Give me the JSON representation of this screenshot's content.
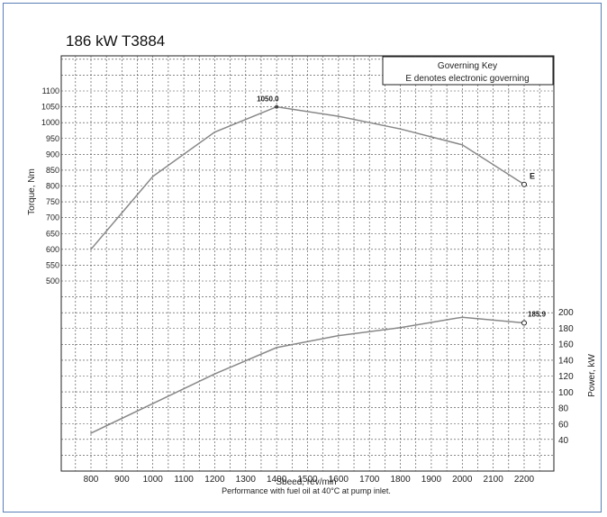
{
  "title": "186 kW T3884",
  "legend": {
    "title": "Governing Key",
    "text": "E denotes electronic governing"
  },
  "colors": {
    "frame": "#5a7fb5",
    "curve": "#888888",
    "grid": "#333333"
  },
  "chart_data": {
    "type": "line",
    "title": "186 kW T3884",
    "xlabel": "Speed, rev/min",
    "xlabel_printed": "Sbeed, rev/min",
    "caption": "Performance with fuel oil at 40°C at pump inlet.",
    "x_ticks": [
      800,
      900,
      1000,
      1100,
      1200,
      1300,
      1400,
      1500,
      1600,
      1700,
      1800,
      1900,
      2000,
      2100,
      2200
    ],
    "xlim": [
      700,
      2300
    ],
    "grid": true,
    "torque": {
      "ylabel": "Torque, Nm",
      "y_ticks": [
        500,
        550,
        600,
        650,
        700,
        750,
        800,
        850,
        900,
        950,
        1000,
        1050,
        1100
      ],
      "ylim": [
        475,
        1150
      ],
      "x": [
        800,
        1000,
        1200,
        1400,
        1600,
        1800,
        2000,
        2200
      ],
      "y": [
        600,
        830,
        970,
        1050,
        1020,
        980,
        930,
        805
      ],
      "peak_label": "1050.0",
      "end_marker": "E"
    },
    "power": {
      "ylabel": "Power, kW",
      "y_ticks": [
        40,
        60,
        80,
        100,
        120,
        140,
        160,
        180,
        200
      ],
      "ylim": [
        0,
        210
      ],
      "x": [
        800,
        1000,
        1200,
        1400,
        1600,
        1800,
        2000,
        2200
      ],
      "y": [
        48,
        85,
        122,
        155,
        170,
        180,
        193,
        185.9
      ],
      "end_label": "185.9"
    }
  }
}
